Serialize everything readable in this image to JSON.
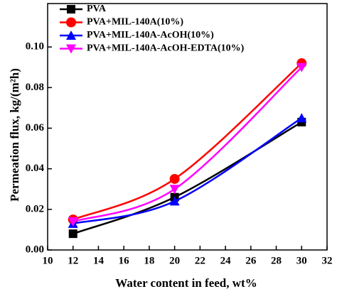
{
  "chart_data": {
    "type": "line",
    "x_label": "Water content in feed, wt%",
    "y_label": "Permeation flux, kg/(m²h)",
    "xlim": [
      10,
      32
    ],
    "xticks": [
      10,
      12,
      14,
      16,
      18,
      20,
      22,
      24,
      26,
      28,
      30,
      32
    ],
    "ylim": [
      0,
      0.12
    ],
    "yticks": [
      {
        "value": 0,
        "label": "0.00"
      },
      0.02,
      0.04,
      0.06,
      0.08,
      {
        "value": 0.1,
        "label": "0.10"
      }
    ],
    "x": [
      12,
      20,
      30
    ],
    "series": [
      {
        "name": "PVA",
        "color": "#000000",
        "marker": "square",
        "values": [
          0.008,
          0.026,
          0.063
        ]
      },
      {
        "name": "PVA+MIL-140A(10%)",
        "color": "#ff0000",
        "marker": "circle",
        "values": [
          0.015,
          0.035,
          0.092
        ]
      },
      {
        "name": "PVA+MIL-140A-AcOH(10%)",
        "color": "#0000ff",
        "marker": "triangle-up",
        "values": [
          0.013,
          0.024,
          0.065
        ]
      },
      {
        "name": "PVA+MIL-140A-AcOH-EDTA(10%)",
        "color": "#ff00ff",
        "marker": "triangle-down",
        "values": [
          0.014,
          0.03,
          0.09
        ]
      }
    ]
  }
}
